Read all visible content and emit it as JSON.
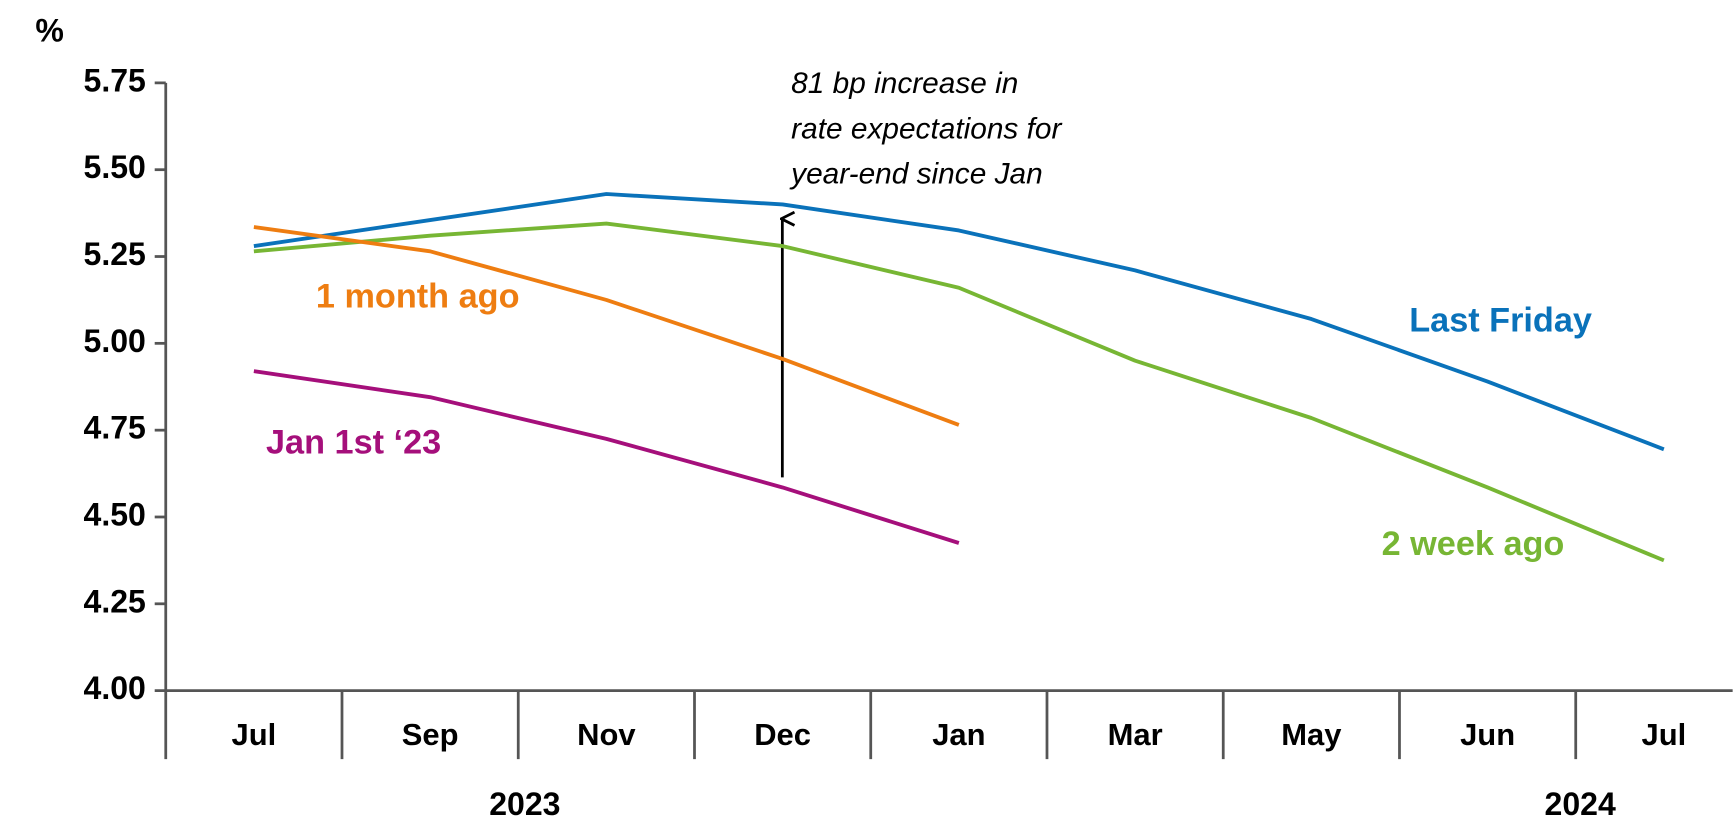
{
  "chart_data": {
    "type": "line",
    "y_unit": "%",
    "categories": [
      "Jul",
      "Sep",
      "Nov",
      "Dec",
      "Jan",
      "Mar",
      "May",
      "Jun",
      "Jul"
    ],
    "years": [
      "2023",
      "2024"
    ],
    "series": [
      {
        "name": "Last Friday",
        "color": "#0a72ba",
        "values": [
          5.28,
          5.355,
          5.43,
          5.4,
          5.325,
          5.21,
          5.07,
          4.89,
          4.695
        ]
      },
      {
        "name": "2 week ago",
        "color": "#77b634",
        "values": [
          5.265,
          5.31,
          5.345,
          5.28,
          5.16,
          4.95,
          4.785,
          4.585,
          4.375
        ]
      },
      {
        "name": "1 month ago",
        "color": "#ee7d11",
        "values": [
          5.335,
          5.265,
          5.125,
          4.955,
          4.765,
          null,
          null,
          null,
          null
        ]
      },
      {
        "name": "Jan 1st ‘23",
        "color": "#a50f7b",
        "values": [
          4.92,
          4.845,
          4.725,
          4.585,
          4.425,
          null,
          null,
          null,
          null
        ]
      }
    ],
    "annotation": [
      "81 bp increase in",
      "rate expectations for",
      "year-end since Jan"
    ],
    "ylim": [
      4.0,
      5.75
    ],
    "yticks": [
      {
        "value": 4.0,
        "label": "4.00"
      },
      {
        "value": 4.25,
        "label": "4.25"
      },
      {
        "value": 4.5,
        "label": "4.50"
      },
      {
        "value": 4.75,
        "label": "4.75"
      },
      {
        "value": 5.0,
        "label": "5.00"
      },
      {
        "value": 5.25,
        "label": "5.25"
      },
      {
        "value": 5.5,
        "label": "5.50"
      },
      {
        "value": 5.75,
        "label": "5.75"
      }
    ],
    "grid": false
  }
}
